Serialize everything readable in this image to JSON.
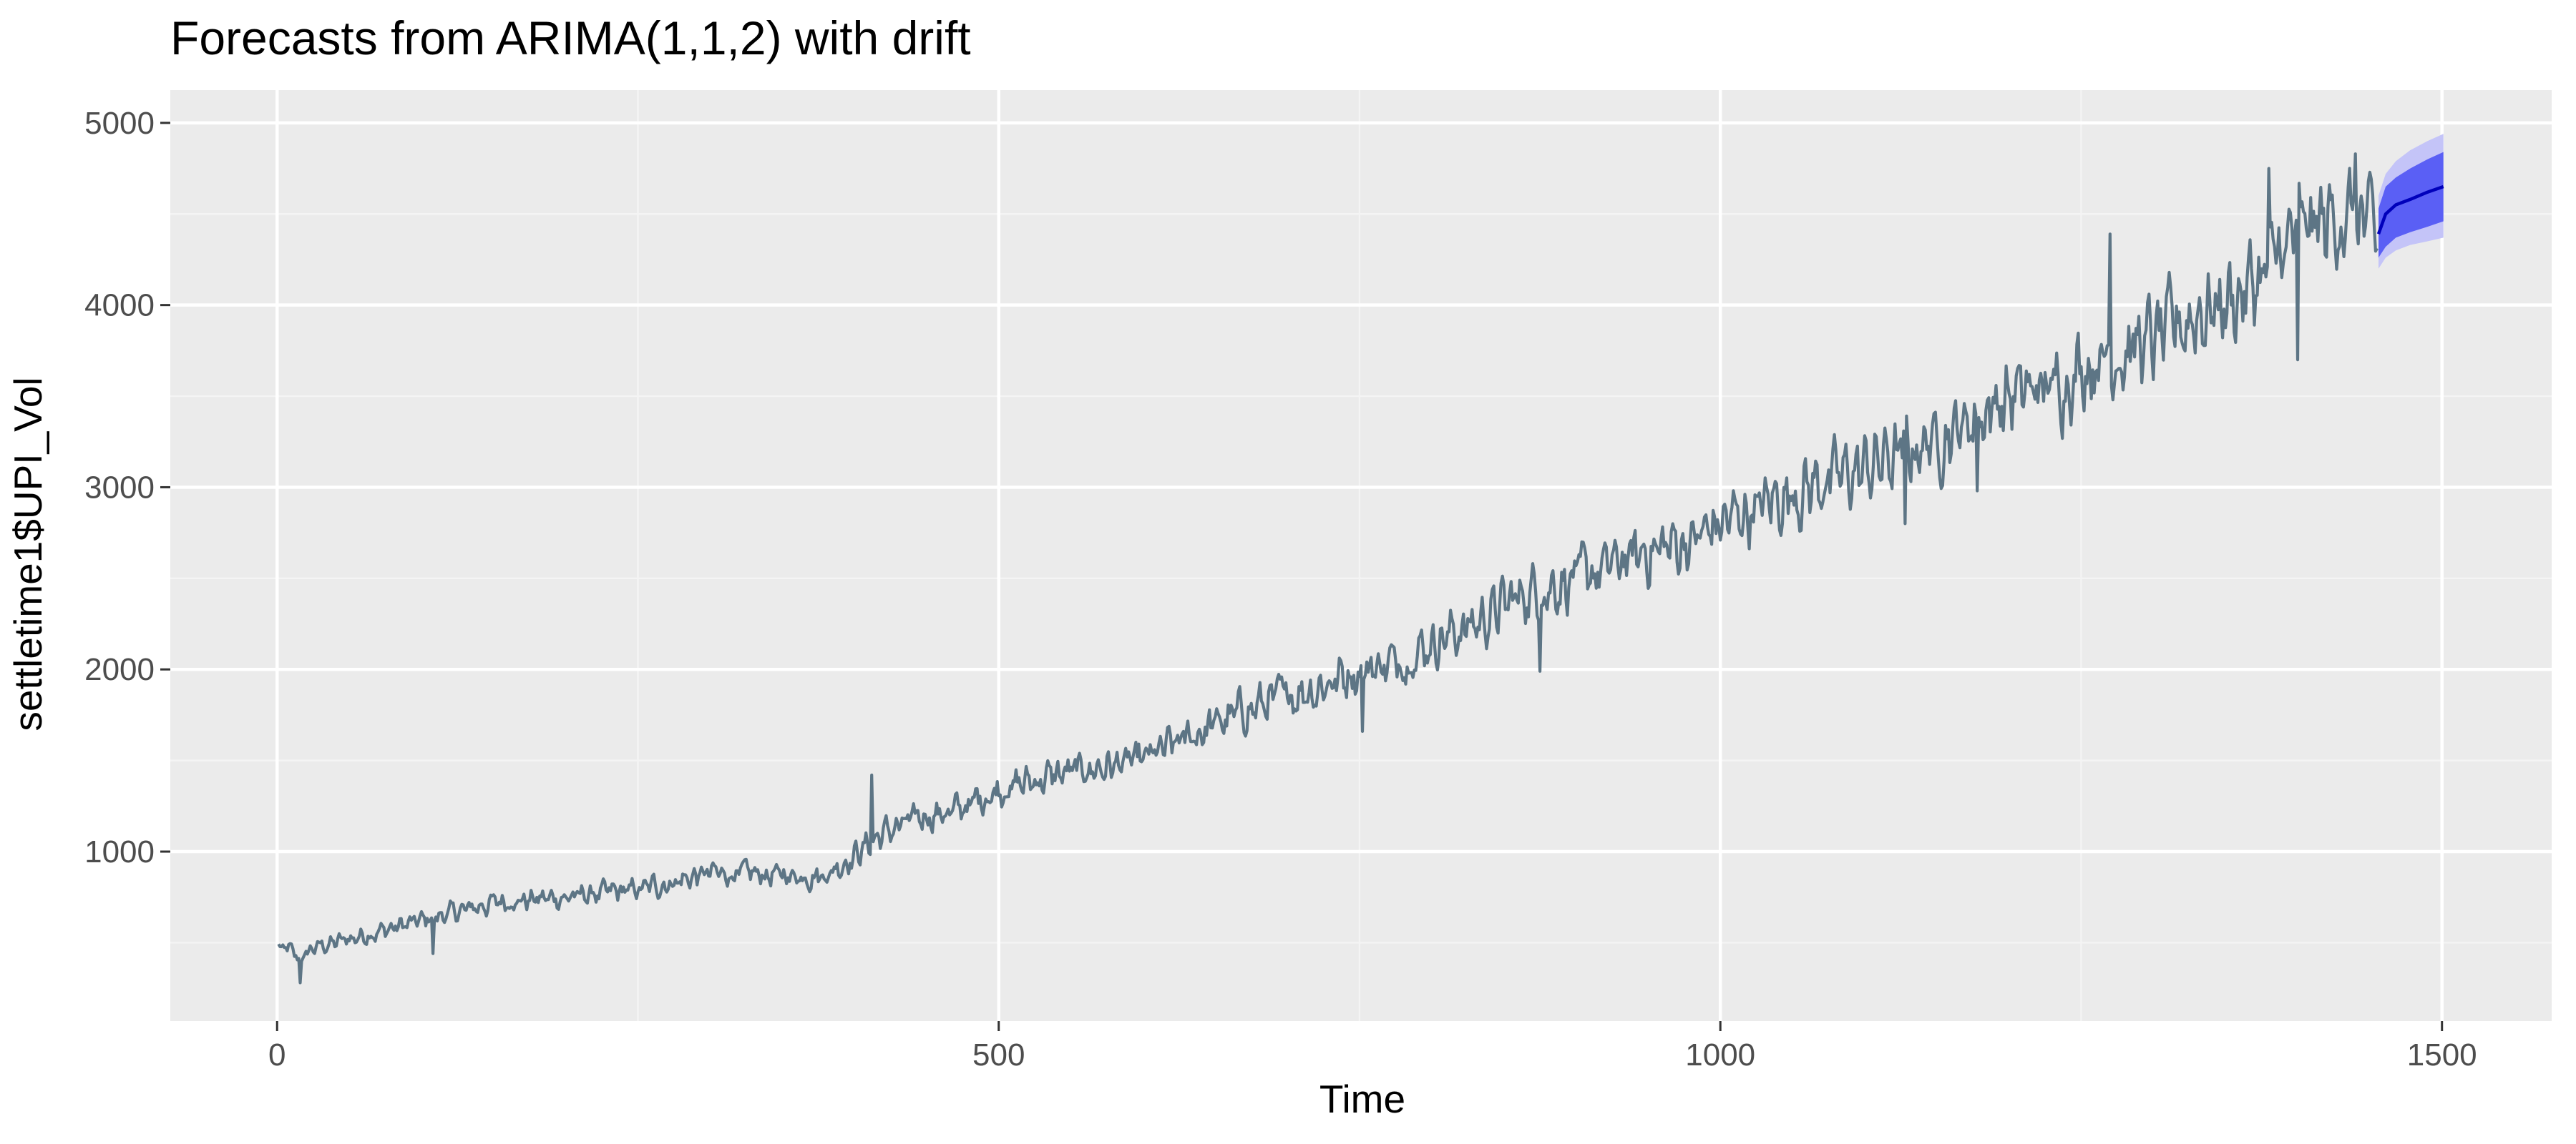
{
  "chart_data": {
    "type": "line",
    "title": "Forecasts from ARIMA(1,1,2) with drift",
    "xlabel": "Time",
    "ylabel": "settletime1$UPI_Vol",
    "xlim": [
      -74,
      1576
    ],
    "ylim": [
      70,
      5180
    ],
    "x_ticks": [
      0,
      500,
      1000,
      1500
    ],
    "x_tick_labels": [
      "0",
      "500",
      "1000",
      "1500"
    ],
    "y_ticks": [
      1000,
      2000,
      3000,
      4000,
      5000
    ],
    "y_tick_labels": [
      "1000",
      "2000",
      "3000",
      "4000",
      "5000"
    ],
    "grid": true,
    "series": [
      {
        "role": "observed",
        "color": "#5d7585",
        "x_start": 1,
        "x_end": 1455,
        "anchors": [
          [
            1,
            470
          ],
          [
            10,
            455
          ],
          [
            15,
            400
          ],
          [
            25,
            470
          ],
          [
            50,
            520
          ],
          [
            80,
            580
          ],
          [
            100,
            620
          ],
          [
            150,
            720
          ],
          [
            200,
            750
          ],
          [
            250,
            790
          ],
          [
            300,
            880
          ],
          [
            350,
            870
          ],
          [
            380,
            870
          ],
          [
            400,
            980
          ],
          [
            420,
            1100
          ],
          [
            450,
            1200
          ],
          [
            470,
            1220
          ],
          [
            500,
            1340
          ],
          [
            520,
            1380
          ],
          [
            540,
            1420
          ],
          [
            570,
            1460
          ],
          [
            600,
            1500
          ],
          [
            620,
            1580
          ],
          [
            650,
            1700
          ],
          [
            680,
            1800
          ],
          [
            700,
            1860
          ],
          [
            720,
            1900
          ],
          [
            750,
            2000
          ],
          [
            780,
            2050
          ],
          [
            800,
            2150
          ],
          [
            830,
            2250
          ],
          [
            860,
            2400
          ],
          [
            880,
            2450
          ],
          [
            900,
            2500
          ],
          [
            920,
            2550
          ],
          [
            950,
            2650
          ],
          [
            980,
            2700
          ],
          [
            1000,
            2800
          ],
          [
            1030,
            2900
          ],
          [
            1060,
            3000
          ],
          [
            1080,
            3050
          ],
          [
            1100,
            3100
          ],
          [
            1130,
            3200
          ],
          [
            1160,
            3300
          ],
          [
            1180,
            3400
          ],
          [
            1200,
            3500
          ],
          [
            1230,
            3550
          ],
          [
            1260,
            3700
          ],
          [
            1280,
            3750
          ],
          [
            1300,
            3800
          ],
          [
            1330,
            3950
          ],
          [
            1360,
            4050
          ],
          [
            1380,
            4200
          ],
          [
            1400,
            4400
          ],
          [
            1420,
            4450
          ],
          [
            1440,
            4500
          ],
          [
            1455,
            4350
          ]
        ],
        "spikes": [
          [
            412,
            1420
          ],
          [
            1270,
            4390
          ],
          [
            1380,
            4750
          ],
          [
            1400,
            3700
          ],
          [
            16,
            280
          ],
          [
            108,
            440
          ],
          [
            752,
            1660
          ],
          [
            875,
            1990
          ],
          [
            1128,
            2800
          ],
          [
            1178,
            2980
          ],
          [
            1440,
            4830
          ]
        ]
      },
      {
        "role": "point-forecast",
        "color": "#0000bb",
        "x": [
          1456,
          1461,
          1468,
          1478,
          1490,
          1501
        ],
        "values": [
          4390,
          4500,
          4550,
          4580,
          4620,
          4650
        ]
      }
    ],
    "intervals": [
      {
        "level": 80,
        "color": "#5a5ff5",
        "x": [
          1456,
          1461,
          1468,
          1478,
          1490,
          1501
        ],
        "lower": [
          4260,
          4320,
          4370,
          4400,
          4430,
          4460
        ],
        "upper": [
          4530,
          4650,
          4700,
          4750,
          4800,
          4840
        ]
      },
      {
        "level": 95,
        "color": "#c4c4f8",
        "x": [
          1456,
          1461,
          1468,
          1478,
          1490,
          1501
        ],
        "lower": [
          4200,
          4260,
          4300,
          4330,
          4350,
          4370
        ],
        "upper": [
          4600,
          4720,
          4790,
          4850,
          4900,
          4940
        ]
      }
    ],
    "colors": {
      "panel_background": "#ebebeb",
      "grid_major": "#ffffff",
      "grid_minor": "#f4f4f4",
      "tick_mark": "#333333"
    }
  }
}
